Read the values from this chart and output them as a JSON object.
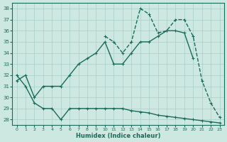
{
  "title": "",
  "xlabel": "Humidex (Indice chaleur)",
  "ylabel": "",
  "bg_color": "#cce8e0",
  "line_color": "#1a6b5a",
  "grid_color": "#a8cec8",
  "xlim": [
    -0.5,
    23.5
  ],
  "ylim": [
    27.5,
    38.5
  ],
  "xticks": [
    0,
    1,
    2,
    3,
    4,
    5,
    6,
    7,
    8,
    9,
    10,
    11,
    12,
    13,
    14,
    15,
    16,
    17,
    18,
    19,
    20,
    21,
    22,
    23
  ],
  "yticks": [
    28,
    29,
    30,
    31,
    32,
    33,
    34,
    35,
    36,
    37,
    38
  ],
  "series1_x": [
    0,
    1,
    2,
    3,
    4,
    5,
    6,
    7,
    8,
    9,
    10,
    11,
    12,
    13,
    14,
    15,
    16,
    17,
    18,
    19,
    20,
    21,
    22,
    23
  ],
  "series1_y": [
    32,
    31,
    29.5,
    29,
    29,
    28,
    29,
    29,
    29,
    29,
    29,
    29,
    29,
    28.8,
    28.7,
    28.6,
    28.4,
    28.3,
    28.2,
    28.1,
    28.0,
    27.9,
    27.8,
    27.7
  ],
  "series2_x": [
    0,
    1,
    2,
    3,
    4,
    5,
    6,
    7,
    8,
    9,
    10,
    11,
    12,
    13,
    14,
    15,
    16,
    17,
    18,
    19,
    20,
    21,
    22,
    23
  ],
  "series2_y": [
    31.5,
    32,
    30,
    31,
    31,
    31,
    32,
    33,
    33.5,
    34,
    35,
    33,
    33,
    34,
    35,
    35,
    35.5,
    36,
    36,
    35.8,
    33.5,
    null,
    null,
    null
  ],
  "series3_x": [
    0,
    1,
    2,
    3,
    4,
    5,
    6,
    7,
    8,
    9,
    10,
    11,
    12,
    13,
    14,
    15,
    16,
    17,
    18,
    19,
    20,
    21,
    22,
    23
  ],
  "series3_y": [
    null,
    null,
    null,
    null,
    null,
    null,
    null,
    null,
    null,
    null,
    35.5,
    35,
    34,
    35,
    38,
    37.5,
    35.8,
    36,
    37,
    37,
    35.5,
    31.5,
    29.5,
    28.2
  ],
  "linewidth": 1.0,
  "markersize": 3.5
}
